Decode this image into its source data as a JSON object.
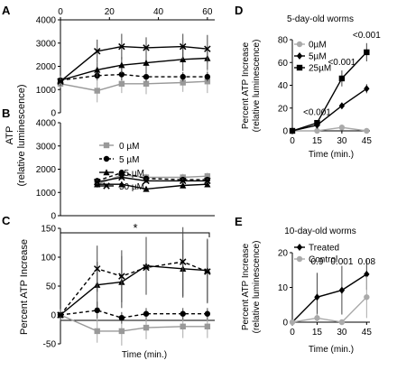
{
  "panel_labels": [
    "A",
    "B",
    "C",
    "D",
    "E"
  ],
  "chart_data": [
    {
      "id": "A",
      "type": "line",
      "x": [
        0,
        15,
        25,
        35,
        50,
        60
      ],
      "xlim": [
        0,
        63
      ],
      "xticks": [
        0,
        20,
        40,
        60
      ],
      "ylim": [
        0,
        4000
      ],
      "yticks": [
        0,
        1000,
        2000,
        3000,
        4000
      ],
      "series": [
        {
          "name": "0 µM",
          "values": [
            1250,
            950,
            1250,
            1250,
            1300,
            1350
          ],
          "err": [
            150,
            500,
            400,
            450,
            400,
            500
          ],
          "color": "#999999",
          "marker": "square",
          "dash": false
        },
        {
          "name": "5 µM",
          "values": [
            1400,
            1600,
            1650,
            1550,
            1550,
            1550
          ],
          "err": [
            150,
            200,
            250,
            200,
            200,
            200
          ],
          "color": "#000000",
          "marker": "circle",
          "dash": true
        },
        {
          "name": "25 µM",
          "values": [
            1400,
            1850,
            2050,
            2150,
            2300,
            2350
          ],
          "err": [
            200,
            300,
            350,
            500,
            500,
            500
          ],
          "color": "#000000",
          "marker": "triangle",
          "dash": false
        },
        {
          "name": "50 µM",
          "values": [
            1350,
            2650,
            2850,
            2800,
            2850,
            2750
          ],
          "err": [
            200,
            500,
            550,
            450,
            550,
            600
          ],
          "color": "#000000",
          "marker": "x",
          "dash": false
        }
      ]
    },
    {
      "id": "B",
      "type": "line",
      "x": [
        15,
        25,
        35,
        50,
        60
      ],
      "xlim": [
        0,
        63
      ],
      "ylim": [
        0,
        4000
      ],
      "yticks": [
        0,
        1000,
        2000,
        3000,
        4000
      ],
      "ylabel": "ATP\n(relative luminescence)",
      "series": [
        {
          "name": "0 µM",
          "values": [
            1350,
            1750,
            1650,
            1650,
            1700
          ],
          "err": [
            150,
            150,
            150,
            150,
            150
          ],
          "color": "#999999",
          "marker": "square",
          "dash": false
        },
        {
          "name": "5 µM",
          "values": [
            1500,
            1850,
            1600,
            1550,
            1550
          ],
          "err": [
            100,
            100,
            100,
            100,
            100
          ],
          "color": "#000000",
          "marker": "circle",
          "dash": true
        },
        {
          "name": "25 µM",
          "values": [
            1350,
            1350,
            1150,
            1300,
            1350
          ],
          "err": [
            100,
            100,
            100,
            100,
            100
          ],
          "color": "#000000",
          "marker": "triangle",
          "dash": false
        },
        {
          "name": "50 µM",
          "values": [
            1450,
            1650,
            1500,
            1500,
            1500
          ],
          "err": [
            100,
            100,
            100,
            100,
            100
          ],
          "color": "#000000",
          "marker": "x",
          "dash": false
        }
      ]
    },
    {
      "id": "C",
      "type": "line",
      "x": [
        0,
        15,
        25,
        35,
        50,
        60
      ],
      "xlim": [
        0,
        63
      ],
      "ylim": [
        -50,
        150
      ],
      "yticks": [
        -50,
        0,
        50,
        100,
        150
      ],
      "ylabel": "Percent ATP Increase",
      "xlabel": "Time (min.)",
      "annotation": "*",
      "series": [
        {
          "name": "0 µM",
          "values": [
            0,
            -28,
            -28,
            -22,
            -20,
            -20
          ],
          "err": [
            10,
            20,
            25,
            20,
            20,
            20
          ],
          "color": "#999999",
          "marker": "square",
          "dash": false
        },
        {
          "name": "5 µM",
          "values": [
            0,
            8,
            -5,
            2,
            2,
            2
          ],
          "err": [
            5,
            15,
            10,
            10,
            10,
            10
          ],
          "color": "#000000",
          "marker": "circle",
          "dash": true
        },
        {
          "name": "25 µM",
          "values": [
            0,
            52,
            57,
            85,
            80,
            77
          ],
          "err": [
            10,
            40,
            45,
            50,
            50,
            55
          ],
          "color": "#000000",
          "marker": "triangle",
          "dash": false
        },
        {
          "name": "50 µM",
          "values": [
            0,
            80,
            67,
            82,
            92,
            75
          ],
          "err": [
            10,
            40,
            45,
            45,
            60,
            55
          ],
          "color": "#000000",
          "marker": "x",
          "dash": true
        }
      ]
    },
    {
      "id": "D",
      "type": "line",
      "title": "5-day-old worms",
      "x": [
        0,
        15,
        30,
        45
      ],
      "xlim": [
        0,
        47
      ],
      "xticks": [
        0,
        15,
        30,
        45
      ],
      "ylim": [
        0,
        80
      ],
      "yticks": [
        0,
        20,
        40,
        60,
        80
      ],
      "ylabel": "Percent ATP Increase\n(relative luminescence)",
      "xlabel": "Time (min.)",
      "annotations": [
        "<0.001",
        "<0.001",
        "<0.001"
      ],
      "series": [
        {
          "name": "0µM",
          "values": [
            0,
            0,
            3,
            0
          ],
          "err": [
            0,
            0,
            1,
            0
          ],
          "color": "#aaaaaa",
          "marker": "circle",
          "dash": false
        },
        {
          "name": "5µM",
          "values": [
            0,
            5,
            22,
            37
          ],
          "err": [
            0,
            1,
            2,
            4
          ],
          "color": "#000000",
          "marker": "diamond",
          "dash": false
        },
        {
          "name": "25µM",
          "values": [
            0,
            7,
            46,
            69
          ],
          "err": [
            0,
            2,
            7,
            8
          ],
          "color": "#000000",
          "marker": "square",
          "dash": false
        }
      ]
    },
    {
      "id": "E",
      "type": "line",
      "title": "10-day-old worms",
      "x": [
        0,
        15,
        30,
        45
      ],
      "xlim": [
        0,
        47
      ],
      "xticks": [
        0,
        15,
        30,
        45
      ],
      "ylim": [
        0,
        20
      ],
      "yticks": [
        0,
        10,
        20
      ],
      "ylabel": "Percent ATP Increase\n(relative luminescence)",
      "xlabel": "Time (min.)",
      "annotations": [
        "0.9",
        "0.001",
        "0.08"
      ],
      "series": [
        {
          "name": "Treated",
          "values": [
            0,
            7.2,
            9.2,
            13.8
          ],
          "err": [
            0,
            7,
            7,
            4.5
          ],
          "color": "#000000",
          "marker": "diamond",
          "dash": false
        },
        {
          "name": "Control",
          "values": [
            0,
            1.2,
            0,
            7.2
          ],
          "err": [
            0,
            1.2,
            0,
            6
          ],
          "color": "#aaaaaa",
          "marker": "circle",
          "dash": false
        }
      ]
    }
  ],
  "legend_abc": [
    "0 µM",
    "5 µM",
    "25 µM",
    "50 µM"
  ]
}
